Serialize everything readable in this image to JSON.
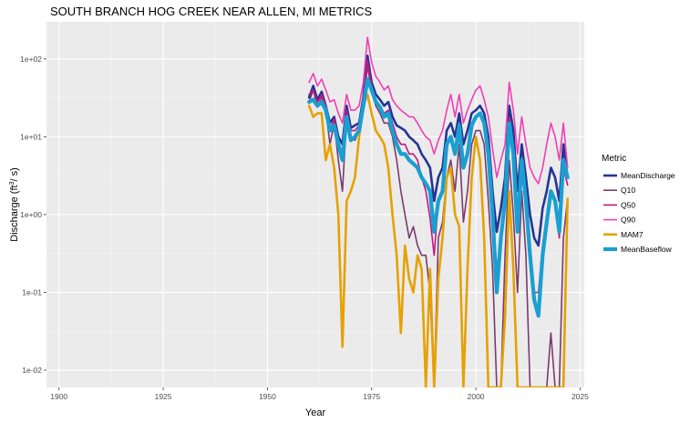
{
  "chart_data": {
    "type": "line",
    "title": "SOUTH BRANCH HOG CREEK NEAR ALLEN, MI  METRICS",
    "xlabel": "Year",
    "ylabel_main": "Discharge (ft",
    "ylabel_sup": "3",
    "ylabel_tail": "/ s)",
    "y_scale": "log10",
    "xlim": [
      1897,
      2026
    ],
    "ylim": [
      0.006,
      300
    ],
    "x_ticks": [
      1900,
      1925,
      1950,
      1975,
      2000,
      2025
    ],
    "x_tick_labels": [
      "1900",
      "1925",
      "1950",
      "1975",
      "2000",
      "2025"
    ],
    "y_ticks": [
      0.01,
      0.1,
      1,
      10,
      100
    ],
    "y_tick_labels": [
      "1e-02",
      "1e-01",
      "1e+00",
      "1e+01",
      "1e+02"
    ],
    "grid": true,
    "legend_title": "Metric",
    "legend_position": "right",
    "series": [
      {
        "name": "MeanDischarge",
        "color": "#253494",
        "width": 2.6,
        "x": [
          1960,
          1961,
          1962,
          1963,
          1964,
          1965,
          1966,
          1967,
          1968,
          1969,
          1970,
          1971,
          1972,
          1973,
          1974,
          1975,
          1976,
          1977,
          1978,
          1979,
          1980,
          1981,
          1982,
          1983,
          1984,
          1985,
          1986,
          1987,
          1988,
          1989,
          1990,
          1991,
          1992,
          1993,
          1994,
          1995,
          1996,
          1997,
          1998,
          1999,
          2000,
          2001,
          2002,
          2003,
          2004,
          2005,
          2006,
          2007,
          2008,
          2009,
          2010,
          2011,
          2012,
          2013,
          2014,
          2015,
          2016,
          2017,
          2018,
          2019,
          2020,
          2021,
          2022
        ],
        "y": [
          32,
          45,
          30,
          38,
          25,
          15,
          18,
          10,
          8,
          25,
          13,
          14,
          15,
          32,
          110,
          50,
          35,
          30,
          25,
          28,
          18,
          14,
          13,
          12,
          10,
          9,
          8,
          6,
          5,
          4,
          1.5,
          3,
          4,
          12,
          15,
          10,
          20,
          8,
          12,
          20,
          22,
          25,
          20,
          10,
          2,
          0.6,
          1.2,
          3,
          25,
          12,
          2,
          8,
          3,
          1,
          0.5,
          0.4,
          1.2,
          2,
          4,
          3,
          1.5,
          8,
          3
        ]
      },
      {
        "name": "Q10",
        "color": "#7a3b6e",
        "width": 1.6,
        "x": [
          1960,
          1961,
          1962,
          1963,
          1964,
          1965,
          1966,
          1967,
          1968,
          1969,
          1970,
          1971,
          1972,
          1973,
          1974,
          1975,
          1976,
          1977,
          1978,
          1979,
          1980,
          1981,
          1982,
          1983,
          1984,
          1985,
          1986,
          1987,
          1988,
          1989,
          1990,
          1991,
          1992,
          1993,
          1994,
          1995,
          1996,
          1997,
          1998,
          1999,
          2000,
          2001,
          2002,
          2003,
          2004,
          2005,
          2006,
          2007,
          2008,
          2009,
          2010,
          2011,
          2012,
          2013,
          2014,
          2015,
          2016,
          2017,
          2018,
          2019,
          2020,
          2021,
          2022
        ],
        "y": [
          28,
          40,
          24,
          33,
          22,
          8,
          15,
          5,
          2,
          18,
          10,
          9,
          12,
          28,
          80,
          40,
          25,
          20,
          15,
          15,
          10,
          5,
          2,
          1,
          0.5,
          0.7,
          0.4,
          0.3,
          0.3,
          0.1,
          0.006,
          0.5,
          0.8,
          3,
          5,
          2,
          8,
          0.8,
          2,
          8,
          12,
          12,
          8,
          1.5,
          0.2,
          0.006,
          0.006,
          0.3,
          5,
          1,
          0.1,
          2,
          0.3,
          0.006,
          0.006,
          0.006,
          0.006,
          0.006,
          0.03,
          0.006,
          0.006,
          0.5,
          1.6
        ]
      },
      {
        "name": "Q50",
        "color": "#c2177f",
        "width": 1.6,
        "x": [
          1960,
          1961,
          1962,
          1963,
          1964,
          1965,
          1966,
          1967,
          1968,
          1969,
          1970,
          1971,
          1972,
          1973,
          1974,
          1975,
          1976,
          1977,
          1978,
          1979,
          1980,
          1981,
          1982,
          1983,
          1984,
          1985,
          1986,
          1987,
          1988,
          1989,
          1990,
          1991,
          1992,
          1993,
          1994,
          1995,
          1996,
          1997,
          1998,
          1999,
          2000,
          2001,
          2002,
          2003,
          2004,
          2005,
          2006,
          2007,
          2008,
          2009,
          2010,
          2011,
          2012,
          2013,
          2014,
          2015,
          2016,
          2017,
          2018,
          2019,
          2020,
          2021,
          2022
        ],
        "y": [
          35,
          40,
          28,
          35,
          25,
          12,
          17,
          9,
          6,
          22,
          12,
          12,
          14,
          30,
          95,
          45,
          30,
          25,
          20,
          22,
          15,
          10,
          8,
          8,
          6,
          6,
          5,
          3,
          2,
          0.9,
          0.3,
          1.5,
          2,
          8,
          10,
          6,
          14,
          4,
          7,
          15,
          18,
          20,
          15,
          6,
          1,
          0.2,
          0.5,
          1.5,
          18,
          6,
          0.8,
          5,
          1.5,
          0.3,
          0.1,
          0.1,
          0.4,
          1,
          2,
          1.5,
          0.5,
          4,
          2.4
        ]
      },
      {
        "name": "Q90",
        "color": "#f03fb4",
        "width": 1.6,
        "x": [
          1960,
          1961,
          1962,
          1963,
          1964,
          1965,
          1966,
          1967,
          1968,
          1969,
          1970,
          1971,
          1972,
          1973,
          1974,
          1975,
          1976,
          1977,
          1978,
          1979,
          1980,
          1981,
          1982,
          1983,
          1984,
          1985,
          1986,
          1987,
          1988,
          1989,
          1990,
          1991,
          1992,
          1993,
          1994,
          1995,
          1996,
          1997,
          1998,
          1999,
          2000,
          2001,
          2002,
          2003,
          2004,
          2005,
          2006,
          2007,
          2008,
          2009,
          2010,
          2011,
          2012,
          2013,
          2014,
          2015,
          2016,
          2017,
          2018,
          2019,
          2020,
          2021,
          2022
        ],
        "y": [
          50,
          65,
          45,
          55,
          40,
          28,
          30,
          20,
          15,
          35,
          22,
          22,
          25,
          50,
          190,
          90,
          60,
          50,
          40,
          45,
          30,
          25,
          22,
          20,
          18,
          18,
          15,
          12,
          10,
          9,
          6,
          9,
          12,
          22,
          35,
          18,
          35,
          15,
          22,
          30,
          40,
          45,
          30,
          18,
          7,
          3,
          5,
          8,
          50,
          22,
          6,
          18,
          8,
          4,
          3,
          2.5,
          4,
          8,
          15,
          10,
          5,
          15,
          4
        ]
      },
      {
        "name": "MAM7",
        "color": "#e6a100",
        "width": 2.6,
        "x": [
          1960,
          1961,
          1962,
          1963,
          1964,
          1965,
          1966,
          1967,
          1968,
          1969,
          1970,
          1971,
          1972,
          1973,
          1974,
          1975,
          1976,
          1977,
          1978,
          1979,
          1980,
          1981,
          1982,
          1983,
          1984,
          1985,
          1986,
          1987,
          1988,
          1989,
          1990,
          1991,
          1992,
          1993,
          1994,
          1995,
          1996,
          1997,
          1998,
          1999,
          2000,
          2001,
          2002,
          2003,
          2004,
          2005,
          2006,
          2007,
          2008,
          2009,
          2010,
          2011,
          2012,
          2013,
          2014,
          2015,
          2016,
          2017,
          2018,
          2019,
          2020,
          2021,
          2022
        ],
        "y": [
          25,
          18,
          20,
          20,
          5,
          8,
          4,
          1,
          0.02,
          1.5,
          2,
          3,
          10,
          25,
          35,
          20,
          12,
          10,
          8,
          4,
          1,
          0.3,
          0.03,
          0.4,
          0.15,
          0.1,
          0.3,
          0.2,
          0.006,
          0.2,
          0.006,
          0.15,
          0.5,
          3,
          4,
          1,
          0.7,
          0.006,
          0.2,
          3,
          10,
          5,
          0.5,
          0.006,
          0.006,
          0.006,
          0.006,
          0.05,
          2,
          0.2,
          0.006,
          0.006,
          0.006,
          0.006,
          0.006,
          0.006,
          0.006,
          0.006,
          0.006,
          0.006,
          0.006,
          0.006,
          1.6
        ]
      },
      {
        "name": "MeanBaseflow",
        "color": "#1a9fd1",
        "width": 4.2,
        "x": [
          1960,
          1961,
          1962,
          1963,
          1964,
          1965,
          1966,
          1967,
          1968,
          1969,
          1970,
          1971,
          1972,
          1973,
          1974,
          1975,
          1976,
          1977,
          1978,
          1979,
          1980,
          1981,
          1982,
          1983,
          1984,
          1985,
          1986,
          1987,
          1988,
          1989,
          1990,
          1991,
          1992,
          1993,
          1994,
          1995,
          1996,
          1997,
          1998,
          1999,
          2000,
          2001,
          2002,
          2003,
          2004,
          2005,
          2006,
          2007,
          2008,
          2009,
          2010,
          2011,
          2012,
          2013,
          2014,
          2015,
          2016,
          2017,
          2018,
          2019,
          2020,
          2021,
          2022
        ],
        "y": [
          28,
          30,
          25,
          28,
          22,
          12,
          14,
          8,
          5,
          18,
          9,
          10,
          12,
          25,
          55,
          40,
          28,
          24,
          18,
          20,
          12,
          8,
          6,
          6,
          5,
          4.5,
          4,
          3,
          2.5,
          2,
          0.6,
          1.5,
          2,
          8,
          10,
          6,
          14,
          4,
          6,
          14,
          18,
          20,
          15,
          6,
          1,
          0.1,
          0.5,
          1.5,
          15,
          6,
          0.6,
          5,
          1.5,
          0.3,
          0.08,
          0.05,
          0.3,
          0.8,
          2,
          1.5,
          0.6,
          5,
          3
        ]
      }
    ]
  }
}
